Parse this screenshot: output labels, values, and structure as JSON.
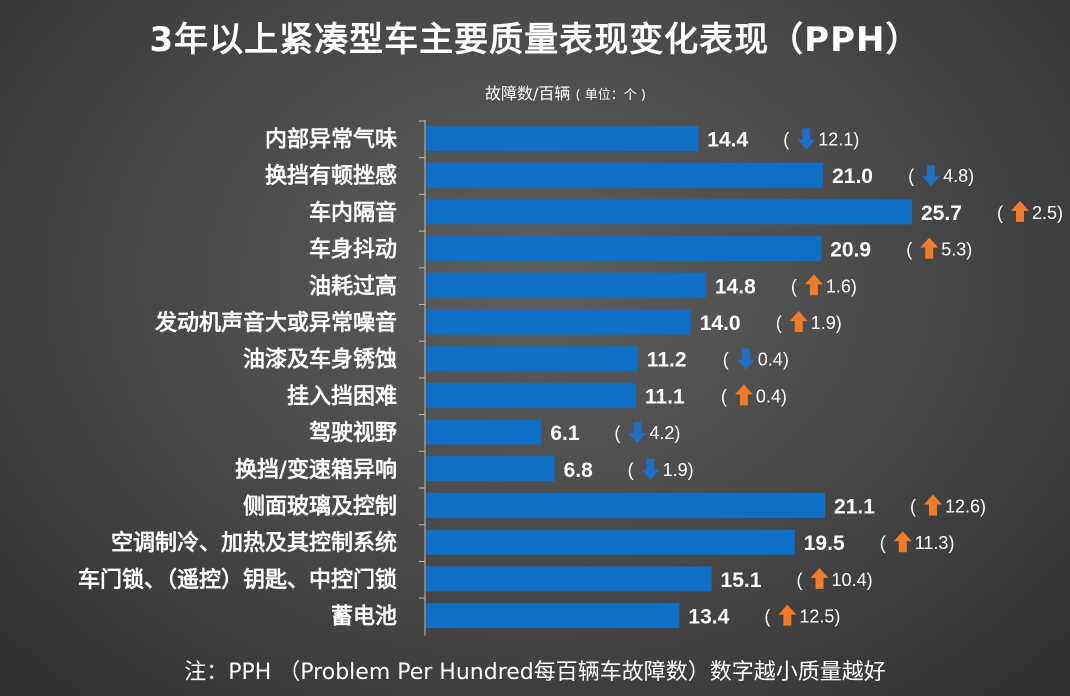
{
  "title": "3年以上紧凑型车主要质量表现变化表现（PPH）",
  "unit_label": "故障数/百辆",
  "unit_small": "( 单位：个 )",
  "footnote": "注：PPH （Problem Per Hundred每百辆车故障数）数字越小质量越好",
  "colors": {
    "bar": "#0f6fc6",
    "down_arrow": "#1f6fc5",
    "up_arrow": "#f07b2a"
  },
  "chart_data": {
    "type": "bar",
    "orientation": "horizontal",
    "title": "3年以上紧凑型车主要质量表现变化表现（PPH）",
    "xlabel": "",
    "ylabel": "",
    "categories": [
      "内部异常气味",
      "换挡有顿挫感",
      "车内隔音",
      "车身抖动",
      "油耗过高",
      "发动机声音大或异常噪音",
      "油漆及车身锈蚀",
      "挂入挡困难",
      "驾驶视野",
      "换挡/变速箱异响",
      "侧面玻璃及控制",
      "空调制冷、加热及其控制系统",
      "车门锁、（遥控）钥匙、中控门锁",
      "蓄电池"
    ],
    "values": [
      14.4,
      21.0,
      25.7,
      20.9,
      14.8,
      14.0,
      11.2,
      11.1,
      6.1,
      6.8,
      21.1,
      19.5,
      15.1,
      13.4
    ],
    "value_labels": [
      "14.4",
      "21.0",
      "25.7",
      "20.9",
      "14.8",
      "14.0",
      "11.2",
      "11.1",
      "6.1",
      "6.8",
      "21.1",
      "19.5",
      "15.1",
      "13.4"
    ],
    "changes": [
      {
        "dir": "down",
        "text": "12.1"
      },
      {
        "dir": "down",
        "text": "4.8"
      },
      {
        "dir": "up",
        "text": "2.5"
      },
      {
        "dir": "up",
        "text": "5.3"
      },
      {
        "dir": "up",
        "text": "1.6"
      },
      {
        "dir": "up",
        "text": "1.9"
      },
      {
        "dir": "down",
        "text": "0.4"
      },
      {
        "dir": "up",
        "text": "0.4"
      },
      {
        "dir": "down",
        "text": "4.2"
      },
      {
        "dir": "down",
        "text": "1.9"
      },
      {
        "dir": "up",
        "text": "12.6"
      },
      {
        "dir": "up",
        "text": "11.3"
      },
      {
        "dir": "up",
        "text": "10.4"
      },
      {
        "dir": "up",
        "text": "12.5"
      }
    ],
    "xlim": [
      0,
      25.7
    ],
    "grid": false,
    "legend": "none"
  }
}
